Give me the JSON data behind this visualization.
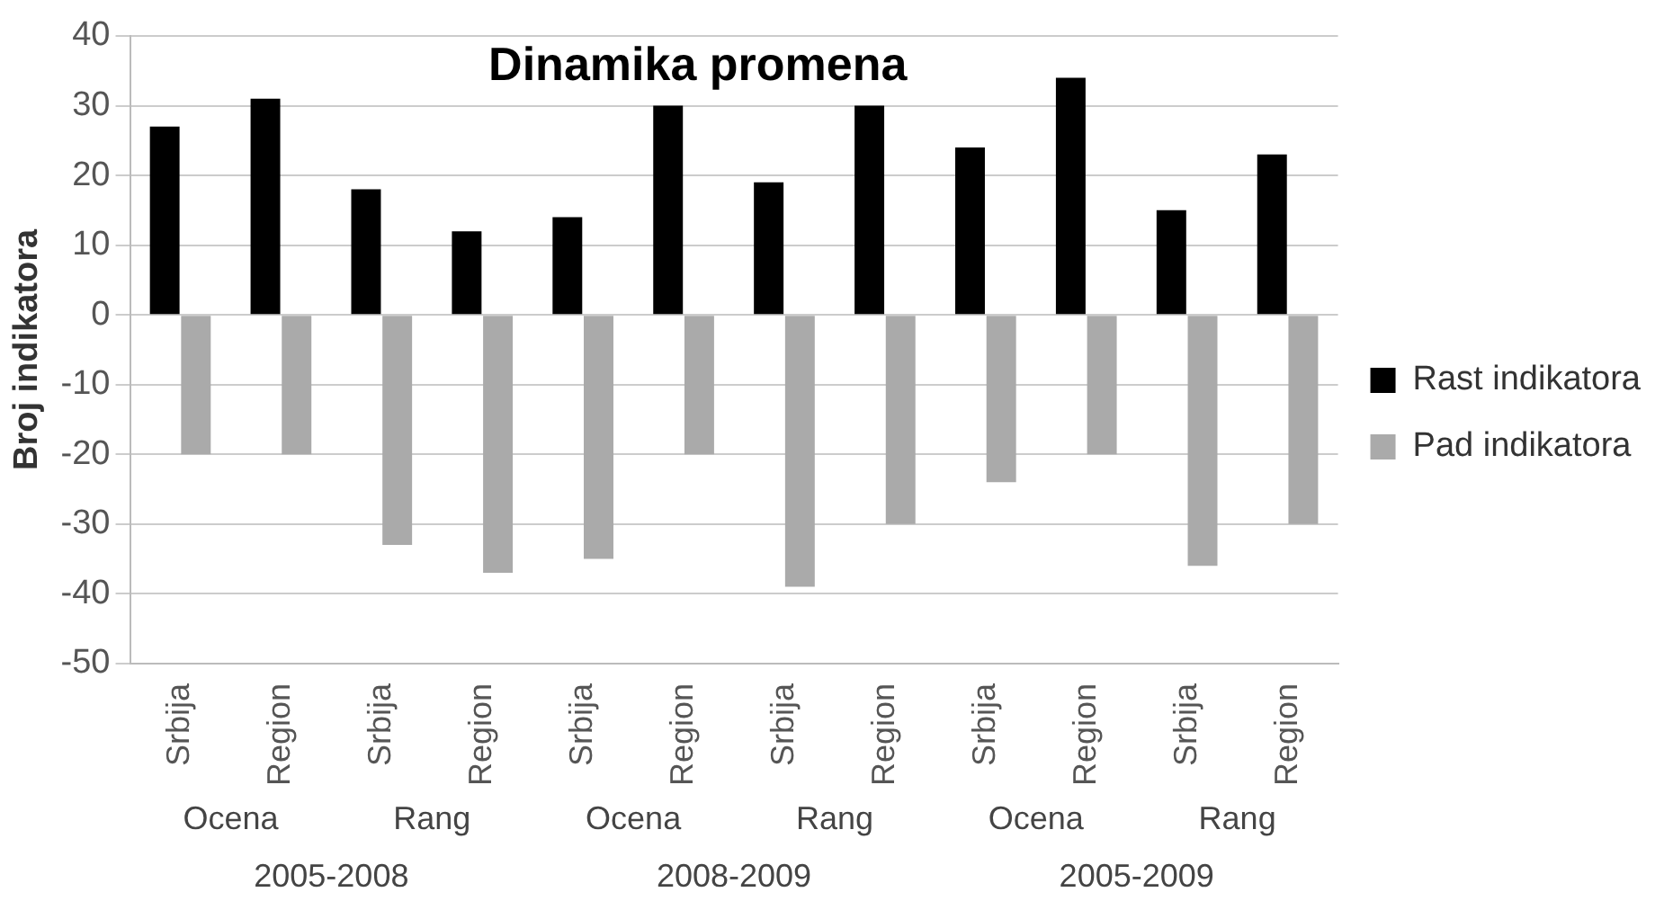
{
  "chart_data": {
    "type": "bar",
    "title": "Dinamika promena",
    "ylabel": "Broj indikatora",
    "categories": [
      "Srbija",
      "Region",
      "Srbija",
      "Region",
      "Srbija",
      "Region",
      "Srbija",
      "Region",
      "Srbija",
      "Region",
      "Srbija",
      "Region"
    ],
    "series": [
      {
        "name": "Rast indikatora",
        "color": "#000000",
        "values": [
          27,
          31,
          18,
          12,
          14,
          30,
          19,
          30,
          24,
          34,
          15,
          23
        ]
      },
      {
        "name": "Pad indikatora",
        "color": "#aaaaaa",
        "values": [
          -20,
          -20,
          -33,
          -37,
          -35,
          -20,
          -39,
          -30,
          -24,
          -20,
          -36,
          -30
        ]
      }
    ],
    "annotations": [
      "Ocena",
      "Rang",
      "Ocena",
      "Rang",
      "Ocena",
      "Rang",
      "2005-2008",
      "2008-2009",
      "2005-2009"
    ],
    "ylim": [
      -50,
      40
    ],
    "yticks": [
      -50,
      -40,
      -30,
      -20,
      -10,
      0,
      10,
      20,
      30,
      40
    ],
    "grid": "y",
    "legend": "right"
  }
}
